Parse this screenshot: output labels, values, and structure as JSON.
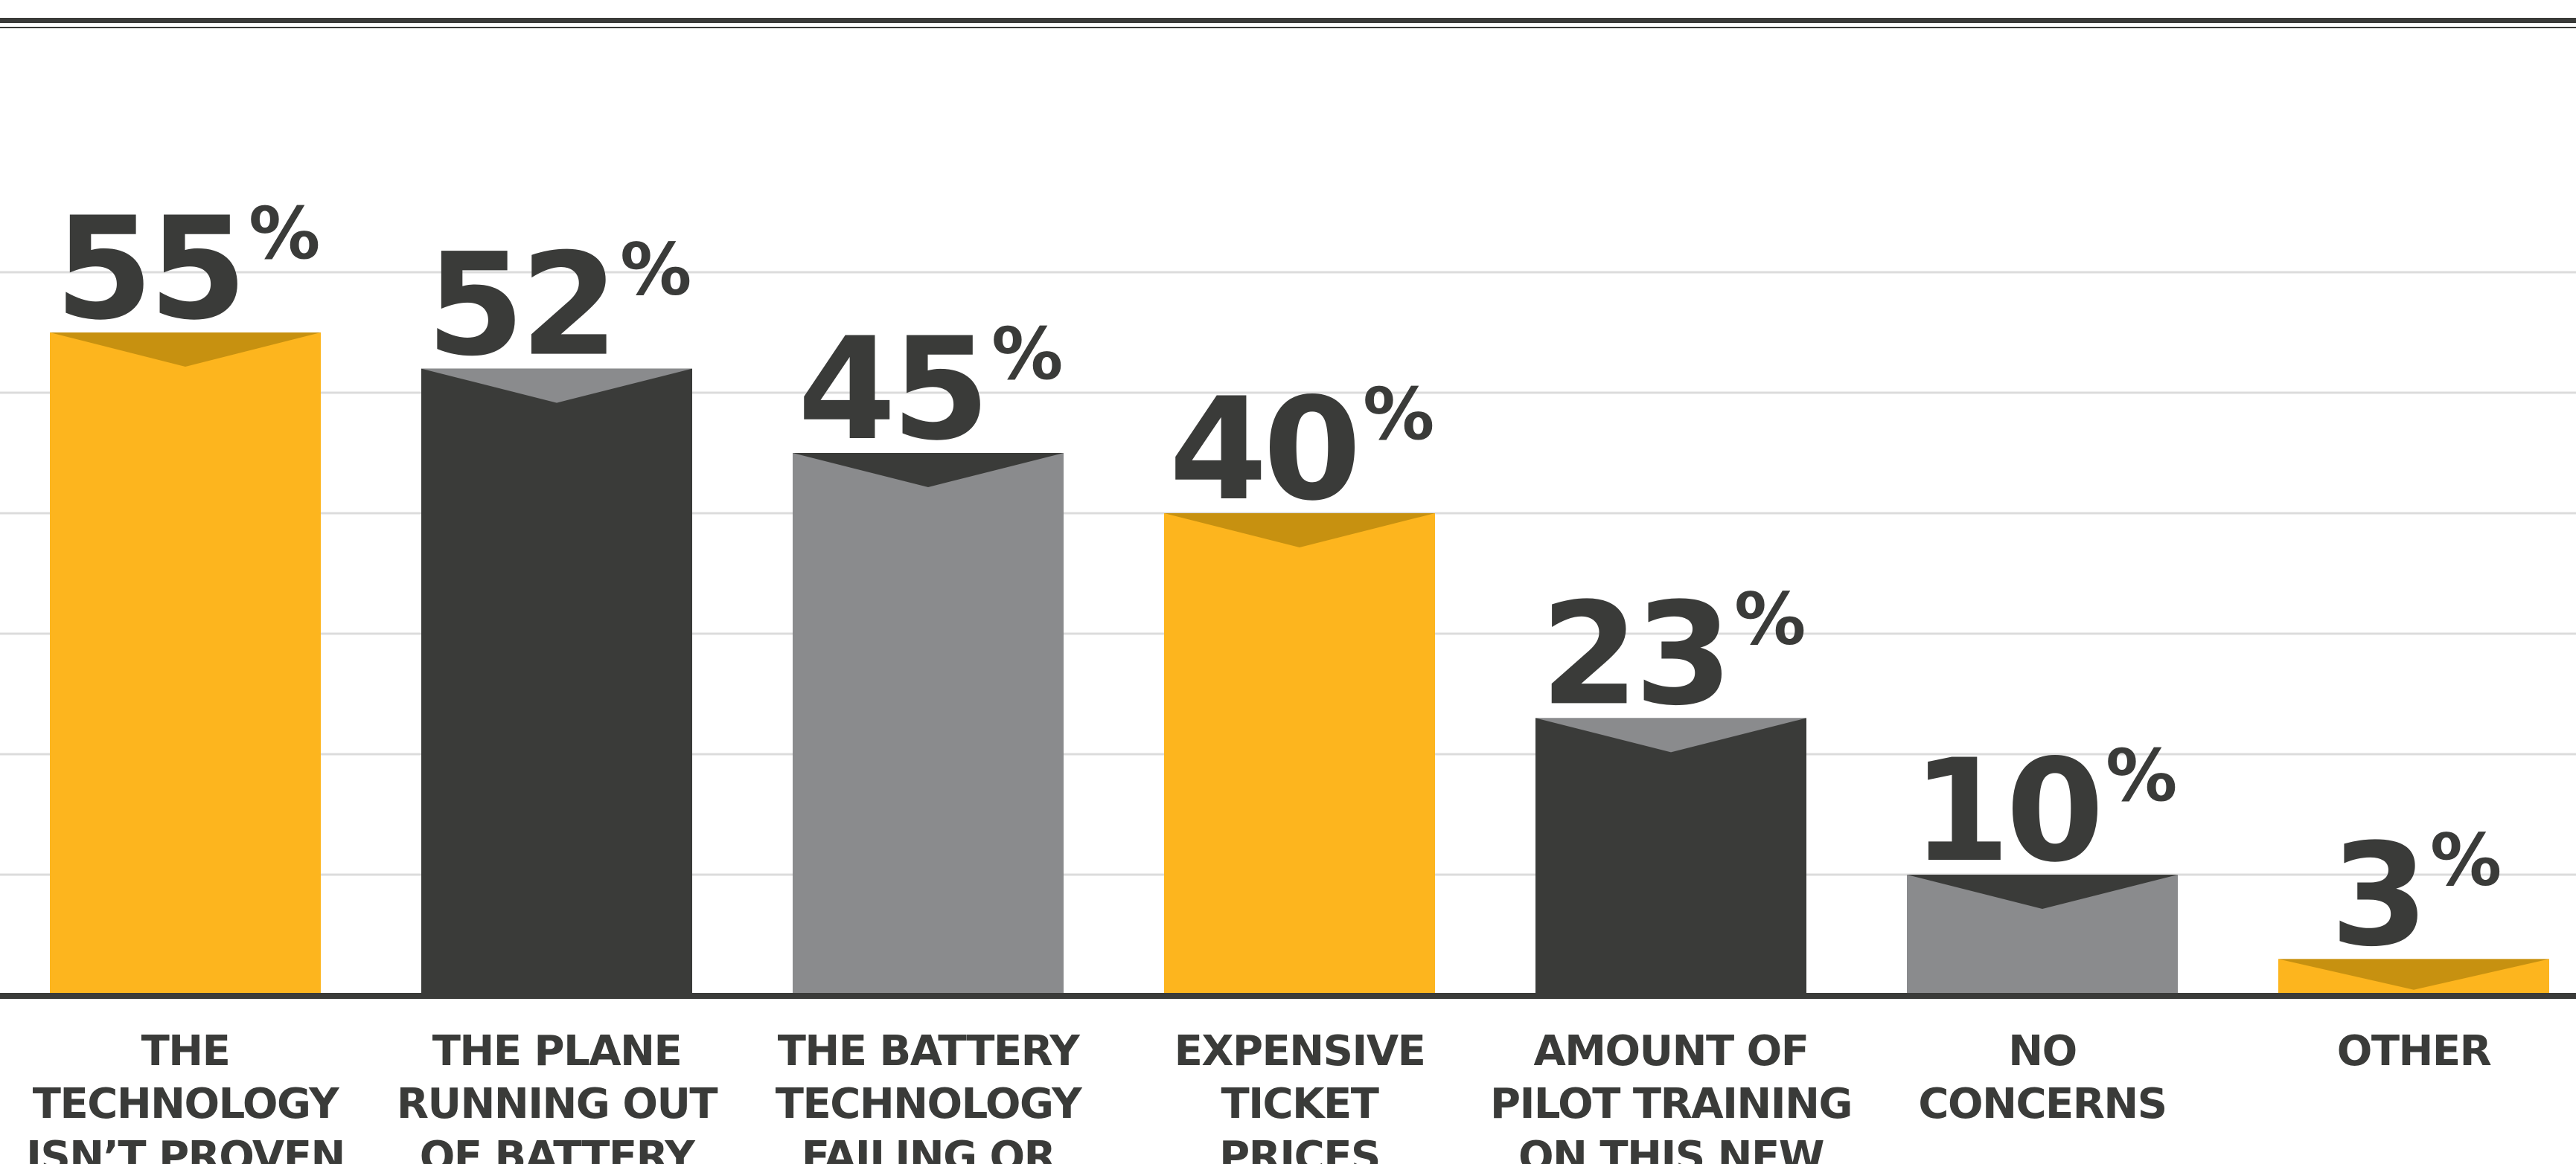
{
  "chart_data": {
    "type": "bar",
    "title": "",
    "xlabel": "",
    "ylabel": "",
    "ylim": [
      0,
      60
    ],
    "grid": true,
    "legend": "none",
    "value_suffix": "%",
    "categories": [
      "THE TECHNOLOGY ISN’T PROVEN",
      "THE PLANE RUNNING OUT OF BATTERY",
      "THE BATTERY TECHNOLOGY FAILING OR",
      "EXPENSIVE TICKET PRICES",
      "AMOUNT OF PILOT TRAINING ON THIS NEW",
      "NO CONCERNS",
      "OTHER"
    ],
    "category_lines": [
      [
        "THE",
        "TECHNOLOGY",
        "ISN’T PROVEN"
      ],
      [
        "THE PLANE",
        "RUNNING OUT",
        "OF BATTERY"
      ],
      [
        "THE BATTERY",
        "TECHNOLOGY",
        "FAILING OR"
      ],
      [
        "EXPENSIVE",
        "TICKET",
        "PRICES"
      ],
      [
        "AMOUNT OF",
        "PILOT TRAINING",
        "ON THIS NEW"
      ],
      [
        "NO",
        "CONCERNS"
      ],
      [
        "OTHER"
      ]
    ],
    "values": [
      55,
      52,
      45,
      40,
      23,
      10,
      3
    ],
    "colors": {
      "yellow": "#fdb51e",
      "yellow_notch": "#c79110",
      "dark": "#3a3b39",
      "dark_notch": "#8a8b8d",
      "gray": "#8a8b8d",
      "gray_notch": "#3a3b39",
      "gridline": "#dcdcdc",
      "baseline": "#3a3b39",
      "text": "#3a3b39"
    },
    "bar_colors": [
      "yellow",
      "dark",
      "gray",
      "yellow",
      "dark",
      "gray",
      "yellow"
    ]
  }
}
